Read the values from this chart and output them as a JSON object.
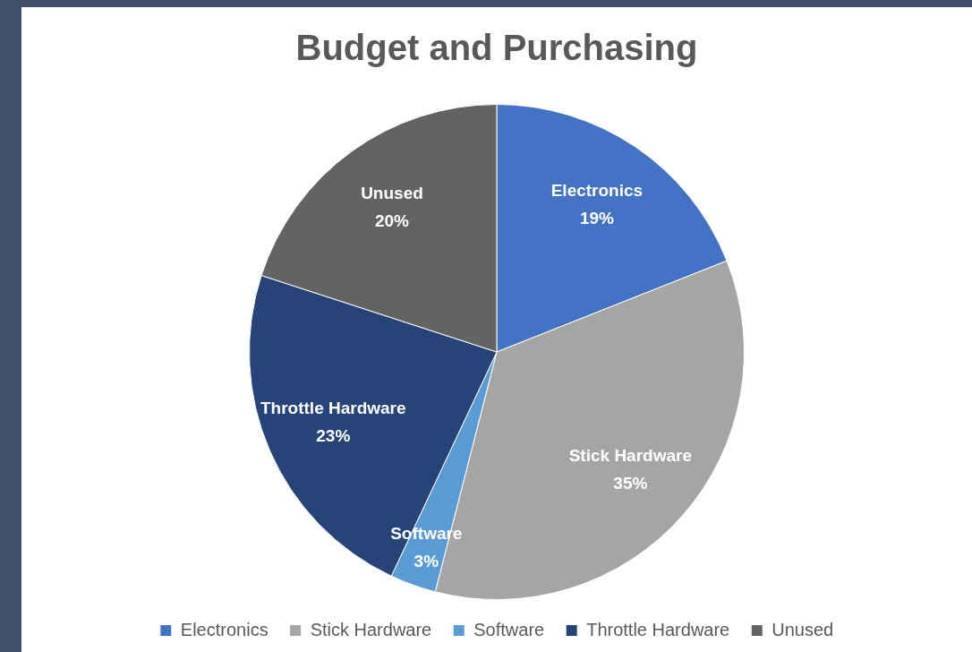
{
  "chart_data": {
    "type": "pie",
    "title": "Budget and Purchasing",
    "categories": [
      "Electronics",
      "Stick Hardware",
      "Software",
      "Throttle Hardware",
      "Unused"
    ],
    "values": [
      19,
      35,
      3,
      23,
      20
    ],
    "colors": [
      "#4472c4",
      "#a5a5a5",
      "#5b9bd5",
      "#264478",
      "#636363"
    ],
    "value_labels": [
      "19%",
      "35%",
      "3%",
      "23%",
      "20%"
    ],
    "legend": "bottom"
  }
}
